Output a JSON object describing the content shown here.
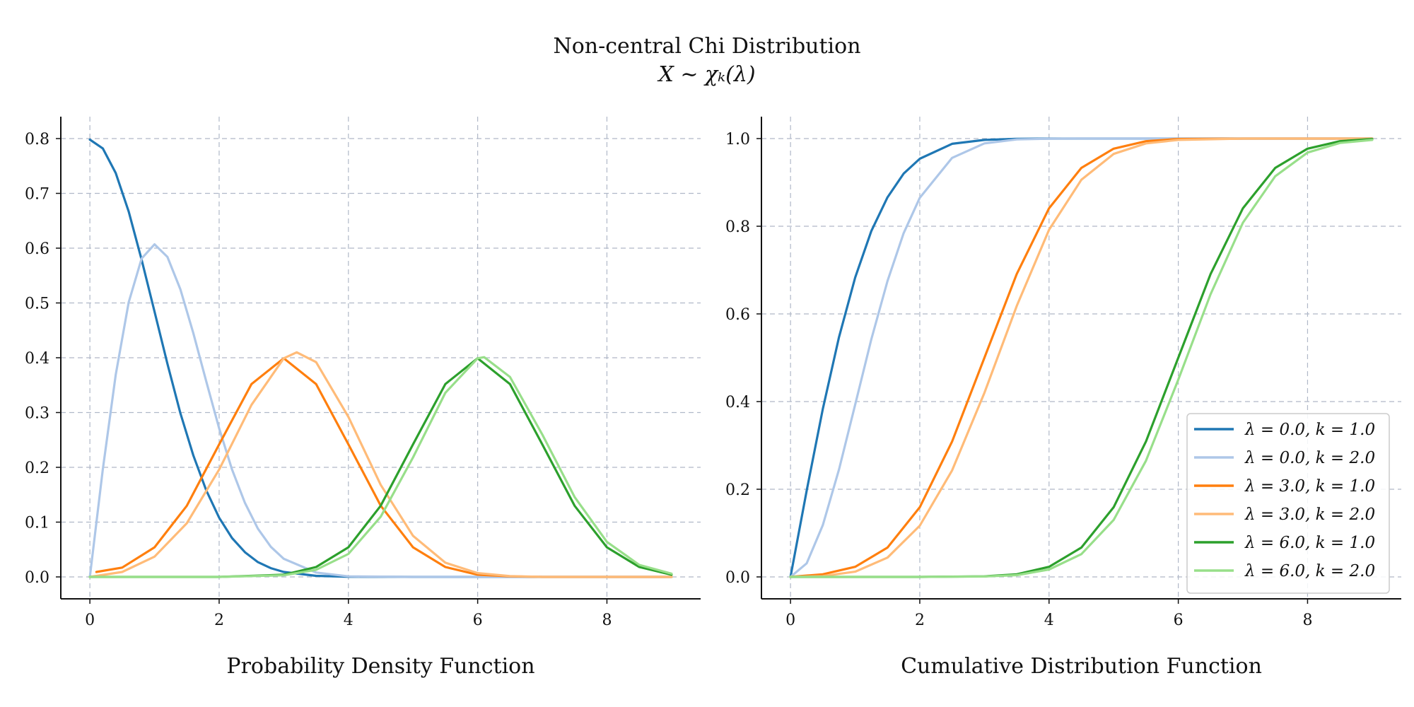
{
  "figure": {
    "title": "Non-central Chi Distribution",
    "subtitle": "X ∼ χₖ(λ)"
  },
  "colors": {
    "s0": "#1f77b4",
    "s1": "#aec7e8",
    "s2": "#ff7f0e",
    "s3": "#ffbb78",
    "s4": "#2ca02c",
    "s5": "#98df8a",
    "grid": "#b0b8c8"
  },
  "chart_data": [
    {
      "type": "line",
      "xlabel": "Probability Density Function",
      "ylabel": "",
      "xlim": [
        -0.45,
        9.45
      ],
      "ylim": [
        -0.04,
        0.84
      ],
      "xticks": [
        0,
        2,
        4,
        6,
        8
      ],
      "xtick_labels": [
        "0",
        "2",
        "4",
        "6",
        "8"
      ],
      "yticks": [
        0.0,
        0.1,
        0.2,
        0.3,
        0.4,
        0.5,
        0.6,
        0.7,
        0.8
      ],
      "ytick_labels": [
        "0.0",
        "0.1",
        "0.2",
        "0.3",
        "0.4",
        "0.5",
        "0.6",
        "0.7",
        "0.8"
      ],
      "grid": true,
      "series": [
        {
          "color_key": "s0",
          "x": [
            0,
            0.2,
            0.4,
            0.6,
            0.8,
            1.0,
            1.2,
            1.4,
            1.6,
            1.8,
            2.0,
            2.2,
            2.4,
            2.6,
            2.8,
            3.0,
            3.5,
            4.0,
            5.0,
            6.0,
            9.0
          ],
          "y": [
            0.798,
            0.782,
            0.737,
            0.667,
            0.579,
            0.484,
            0.389,
            0.299,
            0.222,
            0.158,
            0.108,
            0.071,
            0.045,
            0.027,
            0.016,
            0.009,
            0.002,
            0.0003,
            0.0,
            0.0,
            0.0
          ]
        },
        {
          "color_key": "s1",
          "x": [
            0,
            0.2,
            0.4,
            0.6,
            0.8,
            1.0,
            1.2,
            1.4,
            1.6,
            1.8,
            2.0,
            2.2,
            2.4,
            2.6,
            2.8,
            3.0,
            3.5,
            4.0,
            5.0,
            6.0,
            9.0
          ],
          "y": [
            0.0,
            0.196,
            0.369,
            0.501,
            0.581,
            0.607,
            0.584,
            0.525,
            0.445,
            0.357,
            0.271,
            0.196,
            0.135,
            0.088,
            0.055,
            0.033,
            0.008,
            0.001,
            0.0,
            0.0,
            0.0
          ]
        },
        {
          "color_key": "s2",
          "x": [
            0.1,
            0.5,
            1.0,
            1.5,
            2.0,
            2.5,
            3.0,
            3.5,
            4.0,
            4.5,
            5.0,
            5.5,
            6.0,
            6.5,
            7.0,
            8.0,
            9.0
          ],
          "y": [
            0.009,
            0.017,
            0.054,
            0.13,
            0.242,
            0.352,
            0.399,
            0.352,
            0.242,
            0.13,
            0.054,
            0.018,
            0.004,
            0.001,
            0.0,
            0.0,
            0.0
          ]
        },
        {
          "color_key": "s3",
          "x": [
            0,
            0.5,
            1.0,
            1.5,
            2.0,
            2.5,
            3.0,
            3.2,
            3.5,
            4.0,
            4.5,
            5.0,
            5.5,
            6.0,
            6.5,
            7.0,
            8.0,
            9.0
          ],
          "y": [
            0.0,
            0.009,
            0.037,
            0.098,
            0.196,
            0.314,
            0.399,
            0.41,
            0.392,
            0.292,
            0.168,
            0.075,
            0.026,
            0.007,
            0.0015,
            0.0,
            0.0,
            0.0
          ]
        },
        {
          "color_key": "s4",
          "x": [
            0,
            2.0,
            3.0,
            3.5,
            4.0,
            4.5,
            5.0,
            5.5,
            6.0,
            6.5,
            7.0,
            7.5,
            8.0,
            8.5,
            9.0
          ],
          "y": [
            0.0,
            0.0,
            0.004,
            0.018,
            0.054,
            0.13,
            0.242,
            0.352,
            0.399,
            0.352,
            0.242,
            0.13,
            0.054,
            0.018,
            0.004
          ]
        },
        {
          "color_key": "s5",
          "x": [
            0,
            2.0,
            3.0,
            3.5,
            4.0,
            4.5,
            5.0,
            5.5,
            6.0,
            6.1,
            6.5,
            7.0,
            7.5,
            8.0,
            8.5,
            9.0
          ],
          "y": [
            0.0,
            0.0,
            0.003,
            0.013,
            0.042,
            0.11,
            0.218,
            0.336,
            0.399,
            0.401,
            0.365,
            0.26,
            0.146,
            0.064,
            0.022,
            0.006
          ]
        }
      ]
    },
    {
      "type": "line",
      "xlabel": "Cumulative Distribution Function",
      "ylabel": "",
      "xlim": [
        -0.45,
        9.45
      ],
      "ylim": [
        -0.05,
        1.05
      ],
      "xticks": [
        0,
        2,
        4,
        6,
        8
      ],
      "xtick_labels": [
        "0",
        "2",
        "4",
        "6",
        "8"
      ],
      "yticks": [
        0.0,
        0.2,
        0.4,
        0.6,
        0.8,
        1.0
      ],
      "ytick_labels": [
        "0.0",
        "0.2",
        "0.4",
        "0.6",
        "0.8",
        "1.0"
      ],
      "grid": true,
      "legend_position": "lower-right",
      "series": [
        {
          "name": "λ = 0.0, k = 1.0",
          "color_key": "s0",
          "x": [
            0,
            0.25,
            0.5,
            0.75,
            1.0,
            1.25,
            1.5,
            1.75,
            2.0,
            2.5,
            3.0,
            3.5,
            4.0,
            9.0
          ],
          "y": [
            0.0,
            0.197,
            0.383,
            0.547,
            0.683,
            0.789,
            0.866,
            0.92,
            0.954,
            0.988,
            0.997,
            0.9995,
            1.0,
            1.0
          ]
        },
        {
          "name": "λ = 0.0, k = 2.0",
          "color_key": "s1",
          "x": [
            0,
            0.25,
            0.5,
            0.75,
            1.0,
            1.25,
            1.5,
            1.75,
            2.0,
            2.5,
            3.0,
            3.5,
            4.0,
            4.5,
            9.0
          ],
          "y": [
            0.0,
            0.031,
            0.118,
            0.245,
            0.393,
            0.542,
            0.675,
            0.784,
            0.865,
            0.956,
            0.989,
            0.998,
            0.9997,
            1.0,
            1.0
          ]
        },
        {
          "name": "λ = 3.0, k = 1.0",
          "color_key": "s2",
          "x": [
            0,
            0.5,
            1.0,
            1.5,
            2.0,
            2.5,
            3.0,
            3.5,
            4.0,
            4.5,
            5.0,
            5.5,
            6.0,
            7.0,
            9.0
          ],
          "y": [
            0.0,
            0.006,
            0.023,
            0.067,
            0.159,
            0.309,
            0.5,
            0.691,
            0.841,
            0.933,
            0.977,
            0.994,
            0.999,
            1.0,
            1.0
          ]
        },
        {
          "name": "λ = 3.0, k = 2.0",
          "color_key": "s3",
          "x": [
            0,
            0.5,
            1.0,
            1.5,
            2.0,
            2.5,
            3.0,
            3.5,
            4.0,
            4.5,
            5.0,
            5.5,
            6.0,
            7.0,
            9.0
          ],
          "y": [
            0.0,
            0.002,
            0.012,
            0.044,
            0.117,
            0.243,
            0.42,
            0.618,
            0.792,
            0.906,
            0.965,
            0.989,
            0.997,
            1.0,
            1.0
          ]
        },
        {
          "name": "λ = 6.0, k = 1.0",
          "color_key": "s4",
          "x": [
            0,
            2.0,
            3.0,
            3.5,
            4.0,
            4.5,
            5.0,
            5.5,
            6.0,
            6.5,
            7.0,
            7.5,
            8.0,
            8.5,
            9.0
          ],
          "y": [
            0.0,
            0.0,
            0.0013,
            0.006,
            0.023,
            0.067,
            0.159,
            0.309,
            0.5,
            0.691,
            0.841,
            0.933,
            0.977,
            0.994,
            0.999
          ]
        },
        {
          "name": "λ = 6.0, k = 2.0",
          "color_key": "s5",
          "x": [
            0,
            2.0,
            3.0,
            3.5,
            4.0,
            4.5,
            5.0,
            5.5,
            6.0,
            6.5,
            7.0,
            7.5,
            8.0,
            8.5,
            9.0
          ],
          "y": [
            0.0,
            0.0,
            0.001,
            0.004,
            0.017,
            0.052,
            0.13,
            0.265,
            0.45,
            0.645,
            0.808,
            0.914,
            0.968,
            0.99,
            0.997
          ]
        }
      ]
    }
  ]
}
